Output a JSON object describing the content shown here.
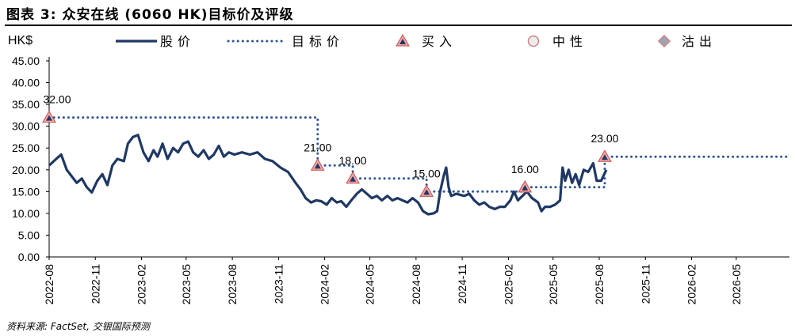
{
  "header": {
    "title": "图表 3: 众安在线 (6060 HK)目标价及评级"
  },
  "footer": {
    "source": "资料来源: FactSet, 交银国际预测"
  },
  "chart_data": {
    "type": "line",
    "ylabel": "HK$",
    "ylim": [
      0,
      45
    ],
    "yticks": [
      "0.00",
      "5.00",
      "10.00",
      "15.00",
      "20.00",
      "25.00",
      "30.00",
      "35.00",
      "40.00",
      "45.00"
    ],
    "x_tick_labels": [
      "2022-08",
      "2022-11",
      "2023-02",
      "2023-05",
      "2023-08",
      "2023-11",
      "2024-02",
      "2024-05",
      "2024-08",
      "2024-11",
      "2025-02",
      "2025-05",
      "2025-08",
      "2025-11",
      "2026-02",
      "2026-05"
    ],
    "xlim": [
      "2022-08-01",
      "2026-08-15"
    ],
    "legend": {
      "placement": "top",
      "items": [
        {
          "label": "股价",
          "style": "solid-line"
        },
        {
          "label": "目标价",
          "style": "dotted-line"
        },
        {
          "label": "买入",
          "style": "red-triangle"
        },
        {
          "label": "中性",
          "style": "circle"
        },
        {
          "label": "沽出",
          "style": "diamond"
        }
      ]
    },
    "colors": {
      "price": "#1f3864",
      "target": "#2f5597",
      "buy_marker": "#f4a6a6",
      "buy_marker_border": "#c0504d",
      "buy_marker_center": "#1f3864"
    },
    "series": [
      {
        "name": "股价",
        "points": [
          [
            "2022-08-01",
            21.0
          ],
          [
            "2022-08-15",
            22.5
          ],
          [
            "2022-08-25",
            23.5
          ],
          [
            "2022-09-05",
            20.0
          ],
          [
            "2022-09-15",
            18.5
          ],
          [
            "2022-09-25",
            17.0
          ],
          [
            "2022-10-05",
            18.0
          ],
          [
            "2022-10-15",
            16.0
          ],
          [
            "2022-10-25",
            14.8
          ],
          [
            "2022-11-05",
            17.5
          ],
          [
            "2022-11-15",
            19.0
          ],
          [
            "2022-11-25",
            16.5
          ],
          [
            "2022-12-05",
            21.0
          ],
          [
            "2022-12-15",
            22.5
          ],
          [
            "2022-12-28",
            22.0
          ],
          [
            "2023-01-05",
            26.0
          ],
          [
            "2023-01-15",
            27.5
          ],
          [
            "2023-01-25",
            28.0
          ],
          [
            "2023-02-05",
            24.0
          ],
          [
            "2023-02-15",
            22.0
          ],
          [
            "2023-02-25",
            24.5
          ],
          [
            "2023-03-05",
            23.0
          ],
          [
            "2023-03-15",
            26.0
          ],
          [
            "2023-03-25",
            22.5
          ],
          [
            "2023-04-05",
            25.0
          ],
          [
            "2023-04-15",
            24.0
          ],
          [
            "2023-04-25",
            26.0
          ],
          [
            "2023-05-05",
            26.5
          ],
          [
            "2023-05-15",
            24.0
          ],
          [
            "2023-05-25",
            23.0
          ],
          [
            "2023-06-05",
            24.5
          ],
          [
            "2023-06-15",
            22.5
          ],
          [
            "2023-06-25",
            23.5
          ],
          [
            "2023-07-05",
            25.5
          ],
          [
            "2023-07-15",
            23.0
          ],
          [
            "2023-07-25",
            24.0
          ],
          [
            "2023-08-05",
            23.5
          ],
          [
            "2023-08-20",
            24.0
          ],
          [
            "2023-09-05",
            23.5
          ],
          [
            "2023-09-20",
            24.0
          ],
          [
            "2023-10-05",
            22.5
          ],
          [
            "2023-10-20",
            22.0
          ],
          [
            "2023-11-05",
            20.5
          ],
          [
            "2023-11-20",
            19.5
          ],
          [
            "2023-12-05",
            17.0
          ],
          [
            "2023-12-15",
            15.5
          ],
          [
            "2023-12-25",
            13.5
          ],
          [
            "2024-01-05",
            12.5
          ],
          [
            "2024-01-15",
            13.0
          ],
          [
            "2024-01-25",
            12.8
          ],
          [
            "2024-02-05",
            12.0
          ],
          [
            "2024-02-15",
            13.5
          ],
          [
            "2024-02-25",
            12.5
          ],
          [
            "2024-03-05",
            12.8
          ],
          [
            "2024-03-15",
            11.5
          ],
          [
            "2024-03-25",
            13.0
          ],
          [
            "2024-04-05",
            14.5
          ],
          [
            "2024-04-15",
            15.5
          ],
          [
            "2024-04-25",
            14.5
          ],
          [
            "2024-05-05",
            13.5
          ],
          [
            "2024-05-15",
            14.0
          ],
          [
            "2024-05-25",
            13.0
          ],
          [
            "2024-06-05",
            14.0
          ],
          [
            "2024-06-15",
            13.0
          ],
          [
            "2024-06-25",
            13.5
          ],
          [
            "2024-07-05",
            13.0
          ],
          [
            "2024-07-15",
            12.5
          ],
          [
            "2024-07-25",
            13.5
          ],
          [
            "2024-08-05",
            12.5
          ],
          [
            "2024-08-15",
            10.5
          ],
          [
            "2024-08-25",
            9.8
          ],
          [
            "2024-09-05",
            10.0
          ],
          [
            "2024-09-12",
            10.5
          ],
          [
            "2024-09-18",
            15.0
          ],
          [
            "2024-09-25",
            18.5
          ],
          [
            "2024-09-30",
            20.5
          ],
          [
            "2024-10-05",
            16.0
          ],
          [
            "2024-10-10",
            14.0
          ],
          [
            "2024-10-20",
            14.5
          ],
          [
            "2024-11-05",
            14.0
          ],
          [
            "2024-11-15",
            14.5
          ],
          [
            "2024-11-25",
            13.0
          ],
          [
            "2024-12-05",
            12.0
          ],
          [
            "2024-12-15",
            12.5
          ],
          [
            "2024-12-25",
            11.5
          ],
          [
            "2025-01-05",
            11.0
          ],
          [
            "2025-01-15",
            11.5
          ],
          [
            "2025-01-25",
            11.5
          ],
          [
            "2025-02-05",
            13.0
          ],
          [
            "2025-02-12",
            15.0
          ],
          [
            "2025-02-20",
            13.0
          ],
          [
            "2025-03-01",
            14.0
          ],
          [
            "2025-03-10",
            15.0
          ],
          [
            "2025-03-20",
            13.5
          ],
          [
            "2025-04-01",
            12.5
          ],
          [
            "2025-04-08",
            10.5
          ],
          [
            "2025-04-15",
            11.5
          ],
          [
            "2025-04-25",
            11.5
          ],
          [
            "2025-05-05",
            12.0
          ],
          [
            "2025-05-15",
            13.0
          ],
          [
            "2025-05-20",
            20.5
          ],
          [
            "2025-05-25",
            17.5
          ],
          [
            "2025-06-01",
            20.0
          ],
          [
            "2025-06-08",
            17.0
          ],
          [
            "2025-06-15",
            19.0
          ],
          [
            "2025-06-22",
            16.5
          ],
          [
            "2025-07-01",
            20.0
          ],
          [
            "2025-07-10",
            19.5
          ],
          [
            "2025-07-20",
            21.5
          ],
          [
            "2025-07-27",
            17.5
          ],
          [
            "2025-08-05",
            17.5
          ],
          [
            "2025-08-15",
            20.0
          ]
        ]
      },
      {
        "name": "目标价",
        "points": [
          [
            "2022-08-01",
            32.0
          ],
          [
            "2024-01-18",
            32.0
          ],
          [
            "2024-01-18",
            21.0
          ],
          [
            "2024-03-28",
            21.0
          ],
          [
            "2024-03-28",
            18.0
          ],
          [
            "2024-08-22",
            18.0
          ],
          [
            "2024-08-22",
            15.0
          ],
          [
            "2025-03-06",
            15.0
          ],
          [
            "2025-03-06",
            16.0
          ],
          [
            "2025-08-12",
            16.0
          ],
          [
            "2025-08-12",
            23.0
          ],
          [
            "2026-08-15",
            23.0
          ]
        ]
      }
    ],
    "ratings": [
      {
        "date": "2022-08-01",
        "rating": "买入",
        "target": 32.0,
        "label": "32.00"
      },
      {
        "date": "2024-01-18",
        "rating": "买入",
        "target": 21.0,
        "label": "21.00"
      },
      {
        "date": "2024-03-28",
        "rating": "买入",
        "target": 18.0,
        "label": "18.00"
      },
      {
        "date": "2024-08-22",
        "rating": "买入",
        "target": 15.0,
        "label": "15.00"
      },
      {
        "date": "2025-03-06",
        "rating": "买入",
        "target": 16.0,
        "label": "16.00"
      },
      {
        "date": "2025-08-12",
        "rating": "买入",
        "target": 23.0,
        "label": "23.00"
      }
    ]
  }
}
